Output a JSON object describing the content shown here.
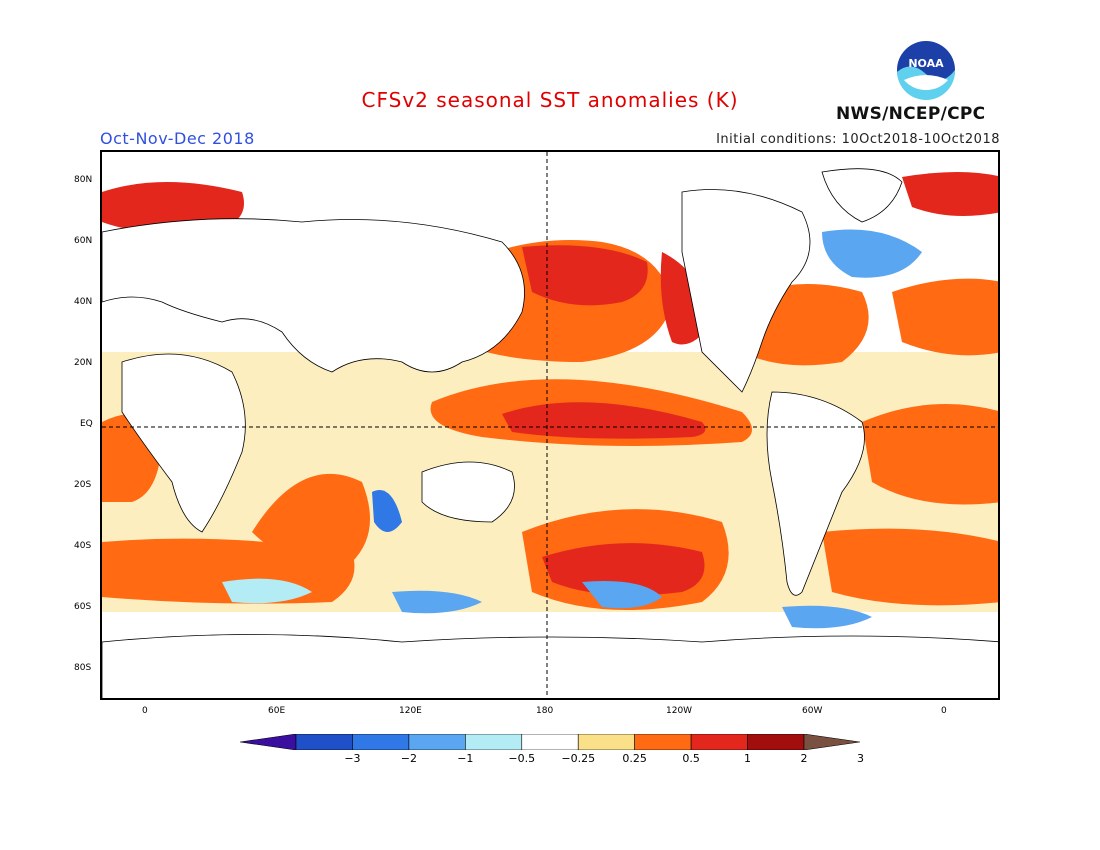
{
  "header": {
    "title": "CFSv2 seasonal SST anomalies (K)",
    "period": "Oct-Nov-Dec 2018",
    "initial_conditions": "Initial conditions: 10Oct2018-10Oct2018",
    "agency": "NWS/NCEP/CPC",
    "logo_text": "NOAA"
  },
  "axes": {
    "lat_labels": [
      "80N",
      "60N",
      "40N",
      "20N",
      "EQ",
      "20S",
      "40S",
      "60S",
      "80S"
    ],
    "lon_labels": [
      "0",
      "60E",
      "120E",
      "180",
      "120W",
      "60W",
      "0"
    ]
  },
  "colorbar": {
    "labels": [
      "-3",
      "-2",
      "-1",
      "-0.5",
      "-0.25",
      "0.25",
      "0.5",
      "1",
      "2",
      "3"
    ],
    "colors": [
      "#3a0fa0",
      "#2050c8",
      "#2f78e6",
      "#5aa6f0",
      "#b4ecf5",
      "#ffffff",
      "#fbe08a",
      "#ff6a12",
      "#e4271c",
      "#a20e0e",
      "#7a5040"
    ]
  },
  "colors": {
    "title": "#e00000",
    "period": "#3050e0",
    "land": "#ffffff",
    "coast": "#000000"
  }
}
